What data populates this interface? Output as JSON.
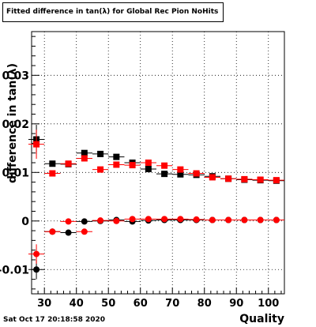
{
  "title": "Fitted difference in tan(λ) for Global Rec Pion NoHits",
  "timestamp": "Sat Oct 17 20:18:58 2020",
  "chart_data": {
    "type": "scatter",
    "title": "Fitted difference in tan(λ) for Global Rec Pion NoHits",
    "xlabel": "Quality",
    "ylabel": "difference in tan(λ)",
    "xlim": [
      26,
      105
    ],
    "ylim": [
      -0.015,
      0.039
    ],
    "x_ticks": [
      30,
      40,
      50,
      60,
      70,
      80,
      90,
      100
    ],
    "y_ticks": [
      -0.01,
      0,
      0.01,
      0.02,
      0.03
    ],
    "y_tick_labels": [
      "-0.01",
      "0",
      "0.01",
      "0.02",
      "0.03"
    ],
    "x_tick_labels": [
      "30",
      "40",
      "50",
      "60",
      "70",
      "80",
      "90",
      "100"
    ],
    "grid": true,
    "series": [
      {
        "color": "#000000",
        "marker": "square",
        "x": [
          27.5,
          32.5,
          37.5,
          42.5,
          47.5,
          52.5,
          57.5,
          62.5,
          67.5,
          72.5,
          77.5,
          82.5,
          87.5,
          92.5,
          97.5,
          102.5
        ],
        "y": [
          0.0168,
          0.0118,
          0.0117,
          0.014,
          0.0138,
          0.0132,
          0.012,
          0.0107,
          0.0097,
          0.0096,
          0.0095,
          0.0092,
          0.0087,
          0.0085,
          0.0084,
          0.0083
        ],
        "yerr": [
          0.003,
          0.0004,
          0.0004,
          0.0004,
          0.0004,
          0.0003,
          0.0003,
          0.0003,
          0.0003,
          0.0003,
          0.0003,
          0.0003,
          0.0003,
          0.0003,
          0.0003,
          0.0003
        ]
      },
      {
        "color": "#ff0000",
        "marker": "square",
        "x": [
          27.5,
          32.5,
          37.5,
          42.5,
          47.5,
          52.5,
          57.5,
          62.5,
          67.5,
          72.5,
          77.5,
          82.5,
          87.5,
          92.5,
          97.5,
          102.5
        ],
        "y": [
          0.0158,
          0.0098,
          0.0118,
          0.0129,
          0.0106,
          0.0116,
          0.0115,
          0.012,
          0.0114,
          0.0106,
          0.0098,
          0.009,
          0.0087,
          0.0086,
          0.0085,
          0.0084
        ],
        "yerr": [
          0.003,
          0.0004,
          0.0004,
          0.0004,
          0.0004,
          0.0003,
          0.0003,
          0.0003,
          0.0003,
          0.0003,
          0.0003,
          0.0003,
          0.0003,
          0.0003,
          0.0003,
          0.0003
        ]
      },
      {
        "color": "#000000",
        "marker": "circle",
        "x": [
          27.5,
          32.5,
          37.5,
          42.5,
          47.5,
          52.5,
          57.5,
          62.5,
          67.5,
          72.5,
          77.5,
          82.5,
          87.5,
          92.5,
          97.5,
          102.5
        ],
        "y": [
          -0.01,
          -0.0022,
          -0.0024,
          -0.0001,
          0.0,
          0.0002,
          -0.0001,
          0.0001,
          0.0002,
          0.0002,
          0.0002,
          0.0002,
          0.0002,
          0.0002,
          0.0002,
          0.0002
        ],
        "yerr": [
          0.002,
          0.0004,
          0.0003,
          0.0003,
          0.0003,
          0.0002,
          0.0002,
          0.0002,
          0.0002,
          0.0002,
          0.0002,
          0.0002,
          0.0002,
          0.0002,
          0.0002,
          0.0002
        ]
      },
      {
        "color": "#ff0000",
        "marker": "circle",
        "x": [
          27.5,
          32.5,
          37.5,
          42.5,
          47.5,
          52.5,
          57.5,
          62.5,
          67.5,
          72.5,
          77.5,
          82.5,
          87.5,
          92.5,
          97.5,
          102.5
        ],
        "y": [
          -0.0068,
          -0.0022,
          -0.0001,
          -0.0022,
          0.0001,
          0.0,
          0.0004,
          0.0004,
          0.0004,
          0.0004,
          0.0003,
          0.0002,
          0.0002,
          0.0002,
          0.0002,
          0.0002
        ],
        "yerr": [
          0.002,
          0.0004,
          0.0003,
          0.0003,
          0.0003,
          0.0002,
          0.0002,
          0.0002,
          0.0002,
          0.0002,
          0.0002,
          0.0002,
          0.0002,
          0.0002,
          0.0002,
          0.0002
        ]
      }
    ]
  }
}
